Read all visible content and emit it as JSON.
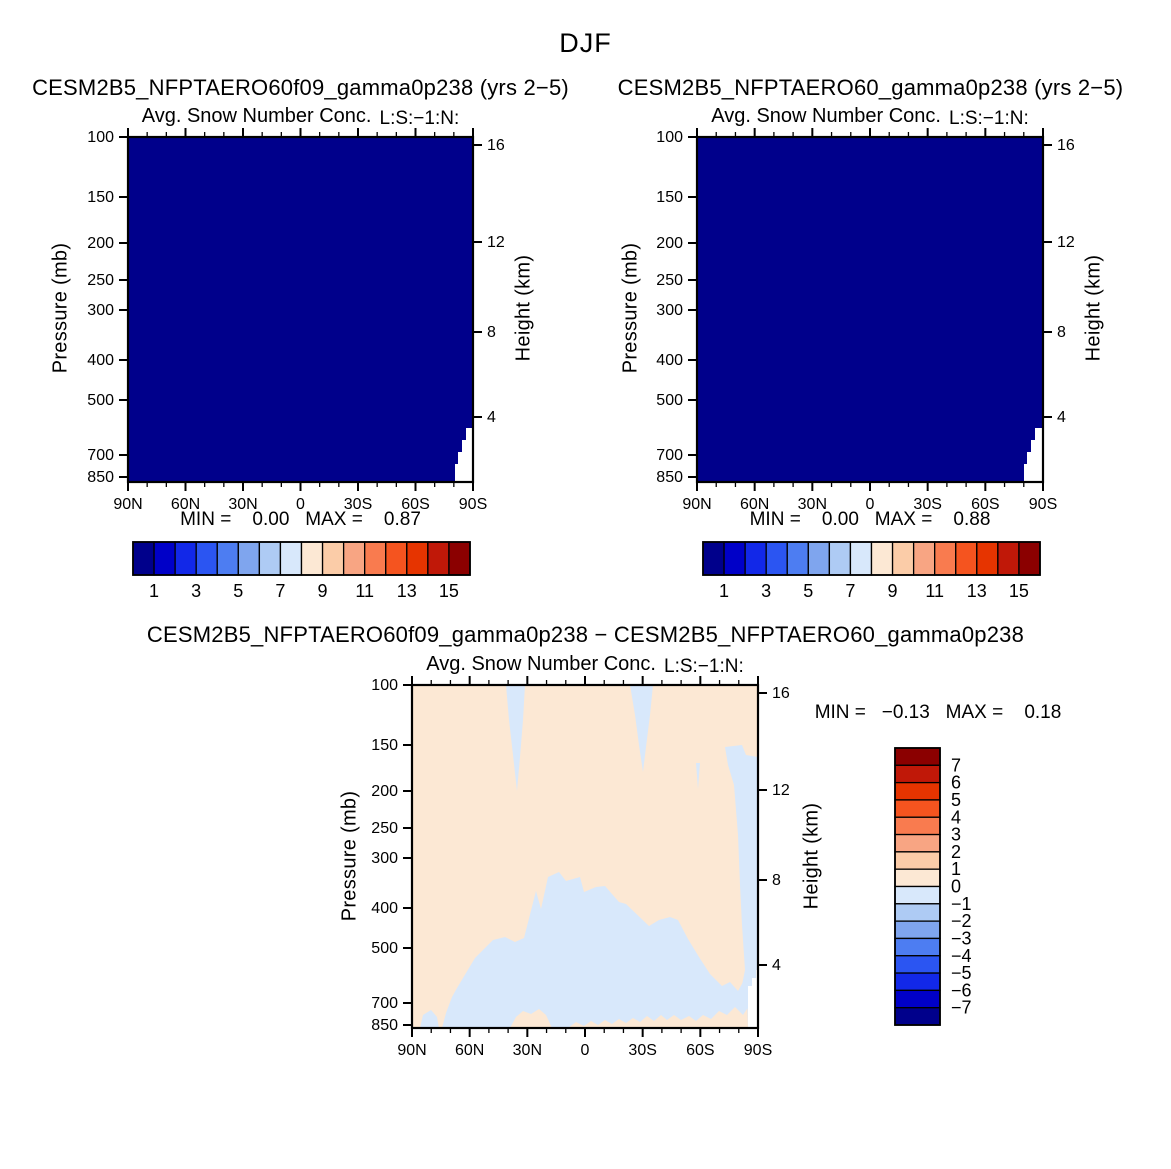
{
  "season_title": "DJF",
  "background_color": "#FFFFFF",
  "text_color": "#000000",
  "palette": [
    "#00008B",
    "#0000C8",
    "#1228E8",
    "#2B55F2",
    "#4D7DF2",
    "#7FA5EE",
    "#AECBF4",
    "#D8E8FB",
    "#FCE8D4",
    "#FBCCA8",
    "#F8A583",
    "#F97B4F",
    "#F5541F",
    "#E63400",
    "#C01808",
    "#8B0000"
  ],
  "chart_data": [
    {
      "type": "heatmap",
      "title": "CESM2B5_NFPTAERO60f09_gamma0p238 (yrs 2−5)",
      "subtitle": "Avg. Snow Number Conc.",
      "subtitle_right": "L:S:−1:N:",
      "stats_line": "MIN =    0.00   MAX =    0.87",
      "min": 0.0,
      "max": 0.87,
      "x_ticks": [
        "90N",
        "60N",
        "30N",
        "0",
        "30S",
        "60S",
        "90S"
      ],
      "y_left_label": "Pressure (mb)",
      "pressure_ticks": {
        "labels": [
          "100",
          "150",
          "200",
          "250",
          "300",
          "400",
          "500",
          "700",
          "850"
        ],
        "y_offsets": [
          0,
          60,
          106,
          143,
          173,
          223,
          263,
          318,
          340
        ]
      },
      "y_right_label": "Height (km)",
      "height_ticks": {
        "labels": [
          "16",
          "12",
          "8",
          "4"
        ],
        "y_offsets": [
          8,
          105,
          195,
          280
        ]
      },
      "field": {
        "uniform": true,
        "color_index": 0,
        "level_range": "below 1"
      },
      "terrain_mask_points": [
        [
          345,
          291
        ],
        [
          338,
          291
        ],
        [
          338,
          303
        ],
        [
          334,
          303
        ],
        [
          334,
          315
        ],
        [
          330,
          315
        ],
        [
          330,
          327
        ],
        [
          327,
          327
        ],
        [
          327,
          345
        ],
        [
          345,
          345
        ]
      ],
      "colorbar": {
        "orientation": "horizontal",
        "n_cells": 16,
        "boundary_labels": [
          "1",
          "3",
          "5",
          "7",
          "9",
          "11",
          "13",
          "15"
        ]
      }
    },
    {
      "type": "heatmap",
      "title": "CESM2B5_NFPTAERO60_gamma0p238 (yrs 2−5)",
      "subtitle": "Avg. Snow Number Conc.",
      "subtitle_right": "L:S:−1:N:",
      "stats_line": "MIN =    0.00   MAX =    0.88",
      "min": 0.0,
      "max": 0.88,
      "x_ticks": [
        "90N",
        "60N",
        "30N",
        "0",
        "30S",
        "60S",
        "90S"
      ],
      "y_left_label": "Pressure (mb)",
      "pressure_ticks": {
        "labels": [
          "100",
          "150",
          "200",
          "250",
          "300",
          "400",
          "500",
          "700",
          "850"
        ],
        "y_offsets": [
          0,
          60,
          106,
          143,
          173,
          223,
          263,
          318,
          340
        ]
      },
      "y_right_label": "Height (km)",
      "height_ticks": {
        "labels": [
          "16",
          "12",
          "8",
          "4"
        ],
        "y_offsets": [
          8,
          105,
          195,
          280
        ]
      },
      "field": {
        "uniform": true,
        "color_index": 0,
        "level_range": "below 1"
      },
      "terrain_mask_points": [
        [
          345,
          291
        ],
        [
          338,
          291
        ],
        [
          338,
          303
        ],
        [
          334,
          303
        ],
        [
          334,
          315
        ],
        [
          330,
          315
        ],
        [
          330,
          327
        ],
        [
          327,
          327
        ],
        [
          327,
          345
        ],
        [
          345,
          345
        ]
      ],
      "colorbar": {
        "orientation": "horizontal",
        "n_cells": 16,
        "boundary_labels": [
          "1",
          "3",
          "5",
          "7",
          "9",
          "11",
          "13",
          "15"
        ]
      }
    },
    {
      "type": "heatmap",
      "title": "CESM2B5_NFPTAERO60f09_gamma0p238 − CESM2B5_NFPTAERO60_gamma0p238",
      "subtitle": "Avg. Snow Number Conc.",
      "subtitle_right": "L:S:−1:N:",
      "stats_line": "MIN =   −0.13   MAX =    0.18",
      "min": -0.13,
      "max": 0.18,
      "x_ticks": [
        "90N",
        "60N",
        "30N",
        "0",
        "30S",
        "60S",
        "90S"
      ],
      "y_left_label": "Pressure (mb)",
      "pressure_ticks": {
        "labels": [
          "100",
          "150",
          "200",
          "250",
          "300",
          "400",
          "500",
          "700",
          "850"
        ],
        "y_offsets": [
          0,
          60,
          106,
          143,
          173,
          223,
          263,
          318,
          340
        ]
      },
      "y_right_label": "Height (km)",
      "height_ticks": {
        "labels": [
          "16",
          "12",
          "8",
          "4"
        ],
        "y_offsets": [
          8,
          105,
          195,
          280
        ]
      },
      "field": {
        "uniform": false,
        "background_color_index": 8,
        "background_level_range": "0 to 1",
        "negative_color_index": 7,
        "negative_level_range": "−1 to 0"
      },
      "regions_negative": [
        {
          "name": "neg-strip-near-30N-top",
          "points": [
            [
              94,
              0
            ],
            [
              113,
              0
            ],
            [
              111,
              35
            ],
            [
              108,
              72
            ],
            [
              105,
              106
            ],
            [
              101,
              70
            ],
            [
              97,
              35
            ]
          ]
        },
        {
          "name": "neg-strip-near-22S-top",
          "points": [
            [
              218,
              0
            ],
            [
              241,
              0
            ],
            [
              238,
              30
            ],
            [
              234,
              62
            ],
            [
              231,
              87
            ],
            [
              227,
              60
            ],
            [
              223,
              30
            ]
          ]
        },
        {
          "name": "neg-sliver-near-45S",
          "points": [
            [
              284,
              78
            ],
            [
              288,
              78
            ],
            [
              286,
              104
            ]
          ]
        },
        {
          "name": "neg-right-edge-strip",
          "points": [
            [
              313,
              62
            ],
            [
              330,
              60
            ],
            [
              334,
              70
            ],
            [
              346,
              72
            ],
            [
              346,
              343
            ],
            [
              336,
              343
            ],
            [
              335,
              312
            ],
            [
              330,
              300
            ],
            [
              333,
              285
            ],
            [
              330,
              240
            ],
            [
              328,
              200
            ],
            [
              326,
              150
            ],
            [
              322,
              100
            ],
            [
              316,
              80
            ]
          ]
        },
        {
          "name": "neg-central-lower-blob",
          "points": [
            [
              30,
              343
            ],
            [
              34,
              328
            ],
            [
              40,
              312
            ],
            [
              45,
              303
            ],
            [
              63,
              273
            ],
            [
              81,
              255
            ],
            [
              93,
              252
            ],
            [
              103,
              257
            ],
            [
              112,
              253
            ],
            [
              124,
              206
            ],
            [
              129,
              224
            ],
            [
              136,
              192
            ],
            [
              147,
              187
            ],
            [
              154,
              196
            ],
            [
              168,
              192
            ],
            [
              172,
              207
            ],
            [
              184,
              202
            ],
            [
              193,
              201
            ],
            [
              207,
              217
            ],
            [
              214,
              219
            ],
            [
              237,
              241
            ],
            [
              247,
              235
            ],
            [
              258,
              232
            ],
            [
              266,
              235
            ],
            [
              276,
              254
            ],
            [
              287,
              272
            ],
            [
              298,
              289
            ],
            [
              310,
              301
            ],
            [
              318,
              297
            ],
            [
              326,
              306
            ],
            [
              331,
              297
            ],
            [
              337,
              306
            ],
            [
              339,
              318
            ],
            [
              331,
              330
            ],
            [
              323,
              322
            ],
            [
              315,
              330
            ],
            [
              307,
              326
            ],
            [
              299,
              334
            ],
            [
              291,
              330
            ],
            [
              284,
              336
            ],
            [
              277,
              331
            ],
            [
              269,
              335
            ],
            [
              262,
              330
            ],
            [
              255,
              335
            ],
            [
              249,
              330
            ],
            [
              242,
              336
            ],
            [
              235,
              331
            ],
            [
              228,
              337
            ],
            [
              221,
              333
            ],
            [
              214,
              338
            ],
            [
              207,
              334
            ],
            [
              200,
              339
            ],
            [
              193,
              335
            ],
            [
              186,
              340
            ],
            [
              179,
              336
            ],
            [
              172,
              341
            ],
            [
              164,
              337
            ],
            [
              156,
              343
            ],
            [
              140,
              343
            ],
            [
              134,
              330
            ],
            [
              127,
              324
            ],
            [
              119,
              329
            ],
            [
              111,
              326
            ],
            [
              104,
              332
            ],
            [
              98,
              343
            ]
          ]
        },
        {
          "name": "neg-bottom-left-patch",
          "points": [
            [
              8,
              343
            ],
            [
              11,
              330
            ],
            [
              19,
              325
            ],
            [
              25,
              332
            ],
            [
              27,
              343
            ]
          ]
        }
      ],
      "terrain_mask_points": [
        [
          346,
          285
        ],
        [
          344,
          285
        ],
        [
          344,
          293
        ],
        [
          340,
          293
        ],
        [
          340,
          301
        ],
        [
          336,
          301
        ],
        [
          336,
          343
        ],
        [
          346,
          343
        ]
      ],
      "colorbar": {
        "orientation": "vertical",
        "n_cells": 16,
        "boundary_labels": [
          "7",
          "6",
          "5",
          "4",
          "3",
          "2",
          "1",
          "0",
          "−1",
          "−2",
          "−3",
          "−4",
          "−5",
          "−6",
          "−7"
        ]
      }
    }
  ]
}
